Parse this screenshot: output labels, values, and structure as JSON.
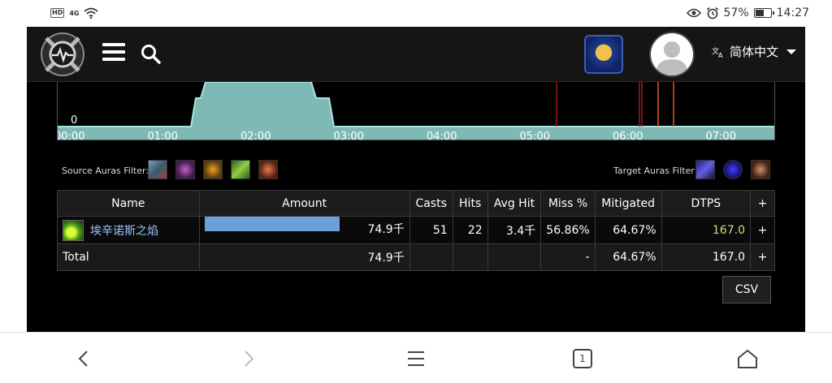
{
  "status_bar": {
    "network_badge": "HD",
    "signal": "4G",
    "battery": "57%",
    "battery_level": 0.57,
    "time": "14:27"
  },
  "header": {
    "language": "简体中文",
    "icons": [
      "logo-icon",
      "menu-icon",
      "search-icon",
      "faction-alliance-icon",
      "user-avatar"
    ]
  },
  "graph": {
    "y_label": "0",
    "x_ticks": [
      "00:00",
      "01:00",
      "02:00",
      "03:00",
      "04:00",
      "05:00",
      "06:00",
      "07:00"
    ],
    "fill_color": "#7fb9b5",
    "line_color": "#a6e6e1",
    "marker_colors": [
      "#a01818",
      "#e8552a"
    ]
  },
  "filters": {
    "source_label": "Source Auras Filter:",
    "target_label": "Target Auras Filter:",
    "source_auras": [
      "aura-1",
      "aura-2",
      "aura-3",
      "aura-4",
      "aura-5"
    ],
    "target_auras": [
      "aura-1",
      "aura-2",
      "aura-3"
    ]
  },
  "table": {
    "headers": {
      "name": "Name",
      "amount": "Amount",
      "casts": "Casts",
      "hits": "Hits",
      "avg_hit": "Avg Hit",
      "miss": "Miss %",
      "mitigated": "Mitigated",
      "dtps": "DTPS",
      "plus": "+"
    },
    "rows": [
      {
        "name": "埃辛诺斯之焰",
        "amount": "74.9千",
        "amount_fraction": 1.0,
        "casts": "51",
        "hits": "22",
        "avg_hit": "3.4千",
        "miss": "56.86%",
        "mitigated": "64.67%",
        "dtps": "167.0",
        "plus": "+"
      }
    ],
    "total": {
      "label": "Total",
      "amount": "74.9千",
      "miss": "-",
      "mitigated": "64.67%",
      "dtps": "167.0",
      "plus": "+"
    }
  },
  "csv_button": "CSV",
  "nav": {
    "tab_count": "1"
  }
}
